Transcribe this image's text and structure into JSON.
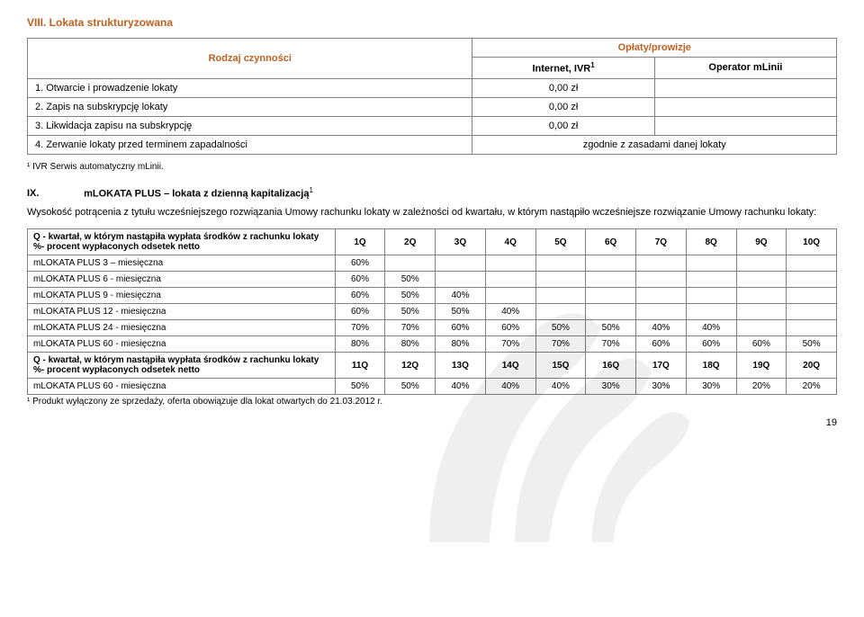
{
  "section8": {
    "title": "VIII.  Lokata strukturyzowana",
    "header_activity": "Rodzaj czynności",
    "header_fees": "Opłaty/prowizje",
    "header_internet": "Internet, IVR",
    "header_sup": "1",
    "header_operator": "Operator mLinii",
    "rows": [
      {
        "label": "1. Otwarcie i prowadzenie lokaty",
        "v1": "0,00 zł",
        "v2": ""
      },
      {
        "label": "2. Zapis na subskrypcję lokaty",
        "v1": "0,00 zł",
        "v2": ""
      },
      {
        "label": "3. Likwidacja zapisu na subskrypcję",
        "v1": "0,00 zł",
        "v2": ""
      },
      {
        "label": "4. Zerwanie lokaty przed terminem zapadalności",
        "v1": "zgodnie z zasadami danej lokaty",
        "v2": "",
        "merge": true
      }
    ],
    "footnote": "¹ IVR Serwis automatyczny mLinii."
  },
  "section9": {
    "num": "IX.",
    "title": "mLOKATA PLUS – lokata z dzienną kapitalizacją",
    "sup": "1",
    "desc": "Wysokość potrącenia z tytułu wcześniejszego rozwiązania Umowy rachunku lokaty w zależności od kwartału, w którym nastąpiło wcześniejsze rozwiązanie Umowy rachunku lokaty:",
    "hdr1_l1": "Q - kwartał, w którym nastąpiła wypłata środków z rachunku lokaty",
    "hdr1_l2": "%- procent wypłaconych odsetek netto",
    "q_a": [
      "1Q",
      "2Q",
      "3Q",
      "4Q",
      "5Q",
      "6Q",
      "7Q",
      "8Q",
      "9Q",
      "10Q"
    ],
    "rows_a": [
      {
        "label": "mLOKATA PLUS 3 – miesięczna",
        "v": [
          "60%",
          "",
          "",
          "",
          "",
          "",
          "",
          "",
          "",
          ""
        ]
      },
      {
        "label": "mLOKATA PLUS 6 - miesięczna",
        "v": [
          "60%",
          "50%",
          "",
          "",
          "",
          "",
          "",
          "",
          "",
          ""
        ]
      },
      {
        "label": "mLOKATA PLUS 9 - miesięczna",
        "v": [
          "60%",
          "50%",
          "40%",
          "",
          "",
          "",
          "",
          "",
          "",
          ""
        ]
      },
      {
        "label": "mLOKATA PLUS 12 - miesięczna",
        "v": [
          "60%",
          "50%",
          "50%",
          "40%",
          "",
          "",
          "",
          "",
          "",
          ""
        ]
      },
      {
        "label": "mLOKATA PLUS 24 - miesięczna",
        "v": [
          "70%",
          "70%",
          "60%",
          "60%",
          "50%",
          "50%",
          "40%",
          "40%",
          "",
          ""
        ]
      },
      {
        "label": "mLOKATA PLUS 60 - miesięczna",
        "v": [
          "80%",
          "80%",
          "80%",
          "70%",
          "70%",
          "70%",
          "60%",
          "60%",
          "60%",
          "50%"
        ]
      }
    ],
    "hdr2_l1": "Q - kwartał, w którym nastąpiła wypłata środków z rachunku lokaty",
    "hdr2_l2": "%- procent wypłaconych odsetek netto",
    "q_b": [
      "11Q",
      "12Q",
      "13Q",
      "14Q",
      "15Q",
      "16Q",
      "17Q",
      "18Q",
      "19Q",
      "20Q"
    ],
    "rows_b": [
      {
        "label": "mLOKATA PLUS 60 - miesięczna",
        "v": [
          "50%",
          "50%",
          "40%",
          "40%",
          "40%",
          "30%",
          "30%",
          "30%",
          "20%",
          "20%"
        ]
      }
    ],
    "footnote": "¹ Produkt wyłączony ze sprzedaży, oferta obowiązuje dla lokat otwartych do 21.03.2012 r."
  },
  "page_number": "19",
  "style": {
    "accent_color": "#c06020",
    "border_color": "#808080",
    "background": "#ffffff",
    "font_family": "Verdana",
    "title_fontsize": 12,
    "body_fontsize": 11,
    "table2_fontsize": 10
  }
}
